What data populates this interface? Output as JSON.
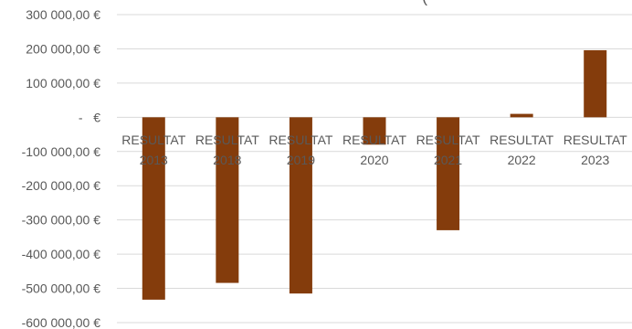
{
  "chart_data": {
    "type": "bar",
    "title": "(",
    "categories": [
      [
        "RESULTAT",
        "2013"
      ],
      [
        "RESULTAT",
        "2018"
      ],
      [
        "RESULTAT",
        "2019"
      ],
      [
        "RESULTAT",
        "2020"
      ],
      [
        "RESULTAT",
        "2021"
      ],
      [
        "RESULTAT",
        "2022"
      ],
      [
        "RESULTAT",
        "2023"
      ]
    ],
    "values": [
      -533000,
      -484000,
      -515000,
      -80000,
      -330000,
      10000,
      196000
    ],
    "ylim": [
      -600000,
      300000
    ],
    "yticks": [
      {
        "value": 300000,
        "label": "300 000,00 €"
      },
      {
        "value": 200000,
        "label": "200 000,00 €"
      },
      {
        "value": 100000,
        "label": "100 000,00 €"
      },
      {
        "value": 0,
        "label": "-   €"
      },
      {
        "value": -100000,
        "label": "-100 000,00 €"
      },
      {
        "value": -200000,
        "label": "-200 000,00 €"
      },
      {
        "value": -300000,
        "label": "-300 000,00 €"
      },
      {
        "value": -400000,
        "label": "-400 000,00 €"
      },
      {
        "value": -500000,
        "label": "-500 000,00 €"
      },
      {
        "value": -600000,
        "label": "-600 000,00 €"
      }
    ],
    "grid": true,
    "bar_color": "#843C0C",
    "grid_color": "#D9D9D9"
  }
}
